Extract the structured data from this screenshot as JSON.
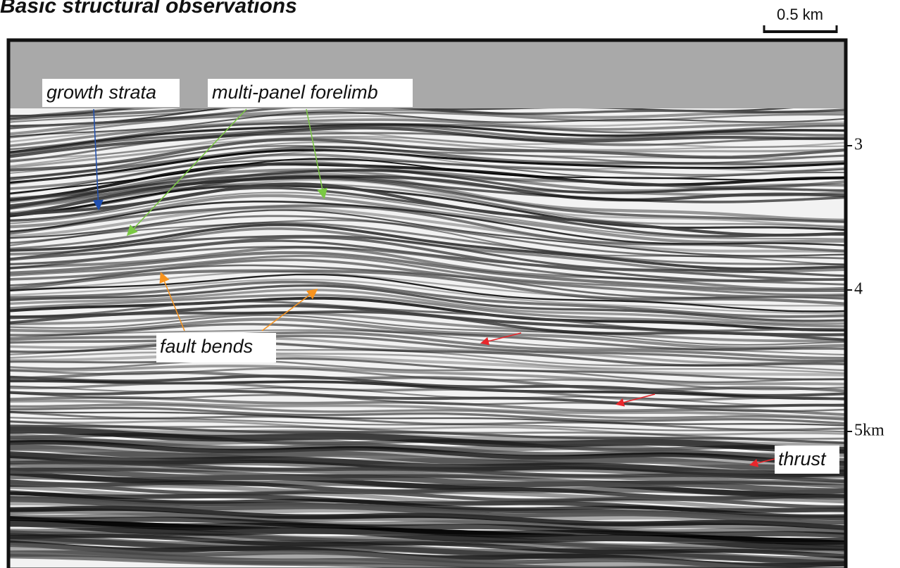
{
  "header": {
    "title": "Basic structural observations",
    "scale_label": "0.5 km"
  },
  "depth_labels": [
    "3",
    "4",
    "5km"
  ],
  "annotations": {
    "growth_strata": "growth strata",
    "forelimb": "multi-panel forelimb",
    "fault_bends": "fault bends",
    "thrust": "thrust"
  }
}
